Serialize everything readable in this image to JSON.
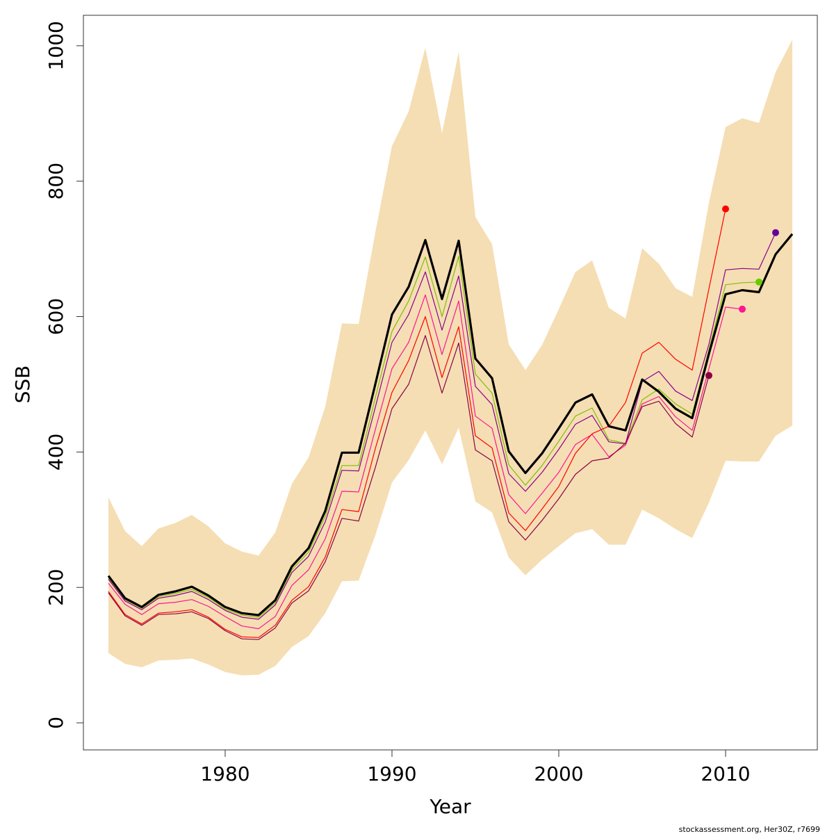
{
  "chart_data": {
    "type": "line",
    "xlabel": "Year",
    "ylabel": "SSB",
    "xlim": [
      1971.5,
      2015.5
    ],
    "ylim": [
      -40,
      1045
    ],
    "x_ticks": [
      1980,
      1990,
      2000,
      2010
    ],
    "y_ticks": [
      0,
      200,
      400,
      600,
      800,
      1000
    ],
    "grid": false,
    "legend": "none",
    "band": {
      "color": "#F5DEB3",
      "x": [
        1973,
        1974,
        1975,
        1976,
        1977,
        1978,
        1979,
        1980,
        1981,
        1982,
        1983,
        1984,
        1985,
        1986,
        1987,
        1988,
        1989,
        1990,
        1991,
        1992,
        1993,
        1994,
        1995,
        1996,
        1997,
        1998,
        1999,
        2000,
        2001,
        2002,
        2003,
        2004,
        2005,
        2006,
        2007,
        2008,
        2009,
        2010,
        2011,
        2012,
        2013,
        2014
      ],
      "lower": [
        103,
        87,
        82,
        92,
        93,
        95,
        86,
        75,
        70,
        71,
        84,
        112,
        128,
        162,
        209,
        210,
        277,
        355,
        388,
        432,
        382,
        436,
        327,
        311,
        244,
        218,
        241,
        261,
        280,
        286,
        263,
        263,
        315,
        302,
        286,
        273,
        325,
        387,
        386,
        386,
        424,
        439
      ],
      "upper": [
        333,
        283,
        261,
        287,
        295,
        307,
        290,
        265,
        253,
        247,
        281,
        353,
        392,
        467,
        590,
        589,
        724,
        852,
        903,
        997,
        871,
        991,
        747,
        707,
        559,
        521,
        558,
        611,
        666,
        683,
        613,
        597,
        701,
        678,
        642,
        629,
        768,
        880,
        893,
        886,
        961,
        1009
      ]
    },
    "series": [
      {
        "color": "#000000",
        "width": 3.2,
        "x": [
          1973,
          1974,
          1975,
          1976,
          1977,
          1978,
          1979,
          1980,
          1981,
          1982,
          1983,
          1984,
          1985,
          1986,
          1987,
          1988,
          1989,
          1990,
          1991,
          1992,
          1993,
          1994,
          1995,
          1996,
          1997,
          1998,
          1999,
          2000,
          2001,
          2002,
          2003,
          2004,
          2005,
          2006,
          2007,
          2008,
          2009,
          2010,
          2011,
          2012,
          2013,
          2014
        ],
        "values": [
          217,
          184,
          171,
          189,
          194,
          201,
          188,
          171,
          162,
          159,
          181,
          231,
          258,
          313,
          399,
          399,
          500,
          603,
          644,
          713,
          626,
          712,
          538,
          509,
          401,
          369,
          398,
          435,
          473,
          485,
          438,
          432,
          507,
          489,
          464,
          450,
          545,
          633,
          639,
          636,
          692,
          722
        ]
      },
      {
        "color": "#7FBF00",
        "width": 1.2,
        "x": [
          1973,
          1974,
          1975,
          1976,
          1977,
          1978,
          1979,
          1980,
          1981,
          1982,
          1983,
          1984,
          1985,
          1986,
          1987,
          1988,
          1989,
          1990,
          1991,
          1992,
          1993,
          1994,
          1995,
          1996,
          1997,
          1998,
          1999,
          2000,
          2001,
          2002,
          2003,
          2004,
          2005,
          2006,
          2007,
          2008,
          2009,
          2010,
          2011,
          2012
        ],
        "values": [
          214,
          182,
          169,
          186,
          191,
          197,
          185,
          168,
          159,
          156,
          177,
          226,
          252,
          305,
          380,
          380,
          480,
          578,
          623,
          688,
          600,
          689,
          515,
          487,
          381,
          351,
          380,
          416,
          453,
          465,
          418,
          413,
          477,
          493,
          471,
          456,
          551,
          647,
          650,
          651
        ]
      },
      {
        "color": "#8B008B",
        "width": 1.2,
        "x": [
          1973,
          1974,
          1975,
          1976,
          1977,
          1978,
          1979,
          1980,
          1981,
          1982,
          1983,
          1984,
          1985,
          1986,
          1987,
          1988,
          1989,
          1990,
          1991,
          1992,
          1993,
          1994,
          1995,
          1996,
          1997,
          1998,
          1999,
          2000,
          2001,
          2002,
          2003,
          2004,
          2005,
          2006,
          2007,
          2008,
          2009,
          2010,
          2011,
          2012,
          2013
        ],
        "values": [
          212,
          180,
          167,
          184,
          188,
          194,
          182,
          166,
          156,
          153,
          174,
          222,
          246,
          297,
          373,
          372,
          466,
          562,
          603,
          666,
          580,
          660,
          497,
          470,
          368,
          342,
          370,
          404,
          441,
          454,
          415,
          412,
          504,
          519,
          490,
          476,
          559,
          669,
          671,
          670,
          724
        ]
      },
      {
        "color": "#FF1493",
        "width": 1.2,
        "x": [
          1973,
          1974,
          1975,
          1976,
          1977,
          1978,
          1979,
          1980,
          1981,
          1982,
          1983,
          1984,
          1985,
          1986,
          1987,
          1988,
          1989,
          1990,
          1991,
          1992,
          1993,
          1994,
          1995,
          1996,
          1997,
          1998,
          1999,
          2000,
          2001,
          2002,
          2003,
          2004,
          2005,
          2006,
          2007,
          2008,
          2009,
          2010,
          2011
        ],
        "values": [
          206,
          175,
          160,
          176,
          178,
          182,
          172,
          157,
          143,
          139,
          157,
          203,
          226,
          272,
          342,
          341,
          433,
          523,
          562,
          632,
          544,
          623,
          453,
          435,
          337,
          309,
          339,
          370,
          411,
          426,
          393,
          410,
          471,
          482,
          452,
          432,
          523,
          614,
          611
        ]
      },
      {
        "color": "#FF0000",
        "width": 1.2,
        "x": [
          1973,
          1974,
          1975,
          1976,
          1977,
          1978,
          1979,
          1980,
          1981,
          1982,
          1983,
          1984,
          1985,
          1986,
          1987,
          1988,
          1989,
          1990,
          1991,
          1992,
          1993,
          1994,
          1995,
          1996,
          1997,
          1998,
          1999,
          2000,
          2001,
          2002,
          2003,
          2004,
          2005,
          2006,
          2007,
          2008,
          2009,
          2010
        ],
        "values": [
          194,
          160,
          146,
          162,
          164,
          167,
          156,
          138,
          127,
          126,
          144,
          181,
          201,
          245,
          315,
          312,
          405,
          488,
          535,
          600,
          510,
          585,
          424,
          406,
          310,
          284,
          316,
          349,
          398,
          427,
          438,
          473,
          546,
          562,
          537,
          521,
          641,
          759
        ]
      },
      {
        "color": "#8B0046",
        "width": 1.2,
        "x": [
          1973,
          1974,
          1975,
          1976,
          1977,
          1978,
          1979,
          1980,
          1981,
          1982,
          1983,
          1984,
          1985,
          1986,
          1987,
          1988,
          1989,
          1990,
          1991,
          1992,
          1993,
          1994,
          1995,
          1996,
          1997,
          1998,
          1999,
          2000,
          2001,
          2002,
          2003,
          2004,
          2005,
          2006,
          2007,
          2008,
          2009
        ],
        "values": [
          192,
          158,
          144,
          160,
          161,
          164,
          154,
          136,
          124,
          123,
          140,
          177,
          195,
          238,
          302,
          298,
          377,
          464,
          500,
          572,
          487,
          561,
          403,
          387,
          297,
          270,
          299,
          331,
          367,
          387,
          391,
          413,
          467,
          475,
          442,
          422,
          513
        ]
      }
    ],
    "endpoints": [
      {
        "x": 2009,
        "y": 513,
        "color": "#8B0046"
      },
      {
        "x": 2010,
        "y": 759,
        "color": "#FF0000"
      },
      {
        "x": 2011,
        "y": 611,
        "color": "#FF1493"
      },
      {
        "x": 2012,
        "y": 651,
        "color": "#66CC00"
      },
      {
        "x": 2013,
        "y": 724,
        "color": "#660099"
      }
    ]
  },
  "footer": {
    "credit": "stockassessment.org, Her30Z, r7699"
  }
}
